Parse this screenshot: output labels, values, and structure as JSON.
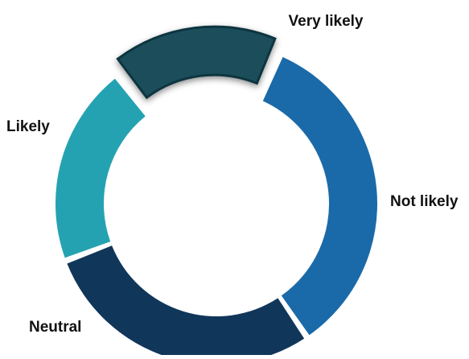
{
  "chart_data": {
    "type": "pie",
    "donut": true,
    "legend": "none",
    "categories": [
      "Very likely",
      "Not likely",
      "Neutral",
      "Likely"
    ],
    "values": [
      16,
      32,
      27,
      19
    ],
    "colors": [
      "#1b4e5a",
      "#1a6aa9",
      "#10365a",
      "#25a2b1"
    ],
    "emphasized": "Very likely"
  }
}
